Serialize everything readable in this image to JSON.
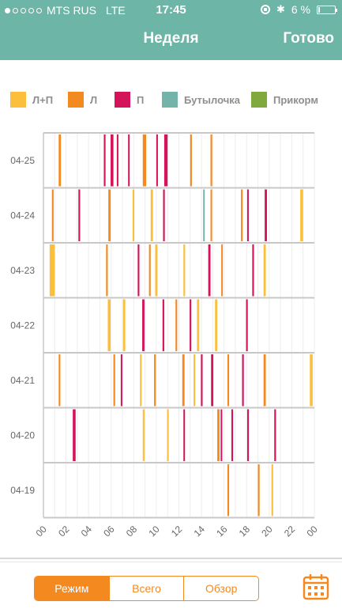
{
  "status_bar": {
    "carrier": "MTS RUS",
    "network": "LTE",
    "time": "17:45",
    "battery_text": "6 %",
    "battery_level": 0.06,
    "signal_dots_on": 1,
    "signal_dots_total": 5
  },
  "nav": {
    "title": "Неделя",
    "done_label": "Готово",
    "bar_color": "#6cb5a7"
  },
  "legend": [
    {
      "label": "Л+П",
      "color": "#fbbf3b"
    },
    {
      "label": "Л",
      "color": "#f4891f"
    },
    {
      "label": "П",
      "color": "#d3145a"
    },
    {
      "label": "Бутылочка",
      "color": "#74b3a9"
    },
    {
      "label": "Прикорм",
      "color": "#7fa93c"
    }
  ],
  "chart_data": {
    "type": "timeline",
    "x_ticks": [
      "00",
      "02",
      "04",
      "06",
      "08",
      "10",
      "12",
      "14",
      "16",
      "18",
      "20",
      "22",
      "00"
    ],
    "x_range_hours": [
      0,
      24
    ],
    "rows": [
      {
        "label": "04-25",
        "events": [
          {
            "start": 1.35,
            "end": 1.55,
            "type": "Л"
          },
          {
            "start": 5.35,
            "end": 5.5,
            "type": "П"
          },
          {
            "start": 5.95,
            "end": 6.2,
            "type": "П"
          },
          {
            "start": 6.5,
            "end": 6.6,
            "type": "П"
          },
          {
            "start": 7.5,
            "end": 7.55,
            "type": "П"
          },
          {
            "start": 8.8,
            "end": 9.1,
            "type": "Л"
          },
          {
            "start": 10.0,
            "end": 10.1,
            "type": "П"
          },
          {
            "start": 10.7,
            "end": 11.0,
            "type": "П"
          },
          {
            "start": 13.0,
            "end": 13.15,
            "type": "Л"
          },
          {
            "start": 14.8,
            "end": 14.95,
            "type": "Л"
          }
        ]
      },
      {
        "label": "04-24",
        "events": [
          {
            "start": 0.75,
            "end": 0.9,
            "type": "Л"
          },
          {
            "start": 3.1,
            "end": 3.25,
            "type": "П"
          },
          {
            "start": 5.75,
            "end": 5.95,
            "type": "Л"
          },
          {
            "start": 7.9,
            "end": 8.05,
            "type": "Л+П"
          },
          {
            "start": 9.5,
            "end": 9.7,
            "type": "Л+П"
          },
          {
            "start": 10.6,
            "end": 10.75,
            "type": "П"
          },
          {
            "start": 14.15,
            "end": 14.25,
            "type": "Бутылочка"
          },
          {
            "start": 14.8,
            "end": 14.9,
            "type": "Л"
          },
          {
            "start": 17.5,
            "end": 17.65,
            "type": "Л"
          },
          {
            "start": 18.05,
            "end": 18.15,
            "type": "П"
          },
          {
            "start": 19.6,
            "end": 19.8,
            "type": "П"
          },
          {
            "start": 22.75,
            "end": 23.0,
            "type": "Л+П"
          }
        ]
      },
      {
        "label": "04-23",
        "events": [
          {
            "start": 0.55,
            "end": 1.0,
            "type": "Л+П"
          },
          {
            "start": 5.55,
            "end": 5.7,
            "type": "Л"
          },
          {
            "start": 8.35,
            "end": 8.5,
            "type": "П"
          },
          {
            "start": 9.35,
            "end": 9.5,
            "type": "Л"
          },
          {
            "start": 9.9,
            "end": 10.1,
            "type": "Л+П"
          },
          {
            "start": 12.4,
            "end": 12.55,
            "type": "Л+П"
          },
          {
            "start": 14.6,
            "end": 14.8,
            "type": "П"
          },
          {
            "start": 15.75,
            "end": 15.85,
            "type": "Л"
          },
          {
            "start": 18.5,
            "end": 18.65,
            "type": "П"
          },
          {
            "start": 19.5,
            "end": 19.7,
            "type": "Л+П"
          }
        ]
      },
      {
        "label": "04-22",
        "events": [
          {
            "start": 5.7,
            "end": 5.95,
            "type": "Л+П"
          },
          {
            "start": 7.05,
            "end": 7.25,
            "type": "Л+П"
          },
          {
            "start": 8.75,
            "end": 8.95,
            "type": "П"
          },
          {
            "start": 10.55,
            "end": 10.7,
            "type": "П"
          },
          {
            "start": 11.7,
            "end": 11.85,
            "type": "Л"
          },
          {
            "start": 12.95,
            "end": 13.1,
            "type": "П"
          },
          {
            "start": 13.6,
            "end": 13.8,
            "type": "Л+П"
          },
          {
            "start": 15.2,
            "end": 15.4,
            "type": "Л+П"
          },
          {
            "start": 17.95,
            "end": 18.1,
            "type": "П"
          }
        ]
      },
      {
        "label": "04-21",
        "events": [
          {
            "start": 1.35,
            "end": 1.5,
            "type": "Л"
          },
          {
            "start": 6.2,
            "end": 6.35,
            "type": "Л"
          },
          {
            "start": 6.85,
            "end": 6.95,
            "type": "П"
          },
          {
            "start": 8.55,
            "end": 8.7,
            "type": "Л+П"
          },
          {
            "start": 9.8,
            "end": 9.95,
            "type": "Л"
          },
          {
            "start": 12.3,
            "end": 12.5,
            "type": "Л"
          },
          {
            "start": 13.3,
            "end": 13.45,
            "type": "Л+П"
          },
          {
            "start": 13.95,
            "end": 14.1,
            "type": "П"
          },
          {
            "start": 14.85,
            "end": 15.05,
            "type": "П"
          },
          {
            "start": 16.3,
            "end": 16.45,
            "type": "Л"
          },
          {
            "start": 17.6,
            "end": 17.75,
            "type": "П"
          },
          {
            "start": 19.5,
            "end": 19.7,
            "type": "Л"
          },
          {
            "start": 23.6,
            "end": 23.85,
            "type": "Л+П"
          }
        ]
      },
      {
        "label": "04-20",
        "events": [
          {
            "start": 2.6,
            "end": 2.85,
            "type": "П"
          },
          {
            "start": 8.8,
            "end": 8.95,
            "type": "Л+П"
          },
          {
            "start": 10.95,
            "end": 11.1,
            "type": "Л+П"
          },
          {
            "start": 12.4,
            "end": 12.5,
            "type": "П"
          },
          {
            "start": 15.4,
            "end": 15.6,
            "type": "Л"
          },
          {
            "start": 15.7,
            "end": 15.8,
            "type": "П"
          },
          {
            "start": 16.65,
            "end": 16.8,
            "type": "П"
          },
          {
            "start": 18.05,
            "end": 18.2,
            "type": "П"
          },
          {
            "start": 20.45,
            "end": 20.6,
            "type": "П"
          }
        ]
      },
      {
        "label": "04-19",
        "events": [
          {
            "start": 16.3,
            "end": 16.45,
            "type": "Л"
          },
          {
            "start": 19.0,
            "end": 19.15,
            "type": "Л"
          },
          {
            "start": 20.2,
            "end": 20.35,
            "type": "Л+П"
          }
        ]
      }
    ]
  },
  "tabs": [
    {
      "label": "Режим",
      "active": true
    },
    {
      "label": "Всего",
      "active": false
    },
    {
      "label": "Обзор",
      "active": false
    }
  ],
  "calendar_icon": "calendar-icon",
  "accent_color": "#f4891f"
}
